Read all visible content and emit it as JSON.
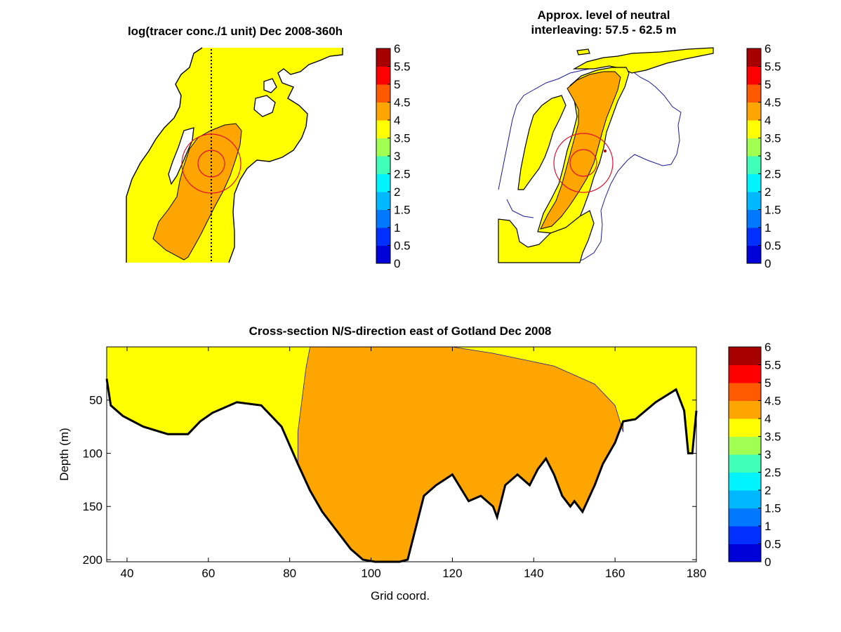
{
  "colors": {
    "scale": [
      "#00009f",
      "#0000d8",
      "#0030ff",
      "#0078ff",
      "#00b8ff",
      "#00f4ff",
      "#40ffb8",
      "#a0ff50",
      "#ffff00",
      "#ffa500",
      "#ff5a00",
      "#ff0000",
      "#a80000"
    ],
    "land": "#ffffff",
    "coast": "#000000",
    "ring": "#e0102e",
    "isoline": "#1a1a9a"
  },
  "chart_data": [
    {
      "type": "heatmap",
      "title": "log(tracer conc./1 unit) Dec 2008-360h",
      "description_fields": {
        "field_levels_present": [
          3.5,
          4.0
        ],
        "features": [
          "dotted-north-south-transect",
          "two-concentric-rings"
        ]
      },
      "colorbar": {
        "ticks": [
          "6",
          "5.5",
          "5",
          "4.5",
          "4",
          "3.5",
          "3",
          "2.5",
          "2",
          "1.5",
          "1",
          "0.5",
          "0"
        ],
        "range": [
          0,
          6
        ],
        "step": 0.5
      }
    },
    {
      "type": "heatmap",
      "title_line1": "Approx. level of neutral",
      "title_line2": "interleaving: 57.5 - 62.5 m",
      "description_fields": {
        "field_levels_present": [
          3.5,
          4.0
        ],
        "features": [
          "two-concentric-rings",
          "blue-coastline-outline"
        ]
      },
      "colorbar": {
        "ticks": [
          "6",
          "5.5",
          "5",
          "4.5",
          "4",
          "3.5",
          "3",
          "2.5",
          "2",
          "1.5",
          "1",
          "0.5",
          "0"
        ],
        "range": [
          0,
          6
        ],
        "step": 0.5
      }
    },
    {
      "type": "heatmap",
      "title": "Cross-section N/S-direction east of Gotland Dec 2008",
      "xlabel": "Grid coord.",
      "ylabel": "Depth (m)",
      "xlim": [
        35,
        180
      ],
      "ylim": [
        202,
        0
      ],
      "xticks": [
        "40",
        "60",
        "80",
        "100",
        "120",
        "140",
        "160",
        "180"
      ],
      "yticks": [
        "50",
        "100",
        "150",
        "200"
      ],
      "bottom_depth_profile": {
        "x": [
          35,
          36,
          39,
          44,
          50,
          55,
          58,
          61,
          64,
          67,
          73,
          78,
          82,
          85,
          88,
          92,
          95,
          98,
          101,
          104,
          107,
          109,
          111,
          113,
          116,
          120,
          124,
          127,
          130,
          131,
          133,
          136,
          139,
          141,
          143,
          145,
          147,
          149,
          150,
          152,
          155,
          157,
          160,
          162,
          165,
          170,
          175,
          177,
          178,
          179,
          179.5,
          180
        ],
        "depth": [
          30,
          55,
          65,
          75,
          82,
          82,
          70,
          62,
          57,
          52,
          55,
          75,
          110,
          135,
          155,
          175,
          190,
          200,
          202,
          202,
          202,
          200,
          170,
          140,
          130,
          120,
          145,
          140,
          150,
          160,
          130,
          120,
          130,
          115,
          105,
          120,
          140,
          150,
          145,
          155,
          130,
          110,
          90,
          70,
          68,
          52,
          40,
          60,
          100,
          100,
          80,
          60
        ]
      },
      "field_levels_present": [
        3.5,
        4.0
      ],
      "level_4_region": {
        "left_boundary": {
          "depth": [
            0,
            20,
            50,
            80,
            110
          ],
          "x": [
            85,
            84,
            83,
            82,
            82
          ]
        },
        "upper_right_boundary": {
          "x": [
            100,
            120,
            130,
            145,
            155,
            160,
            162
          ],
          "depth": [
            0,
            0,
            6,
            18,
            35,
            55,
            80
          ]
        }
      },
      "colorbar": {
        "ticks": [
          "6",
          "5.5",
          "5",
          "4.5",
          "4",
          "3.5",
          "3",
          "2.5",
          "2",
          "1.5",
          "1",
          "0.5",
          "0"
        ],
        "range": [
          0,
          6
        ],
        "step": 0.5
      }
    }
  ]
}
